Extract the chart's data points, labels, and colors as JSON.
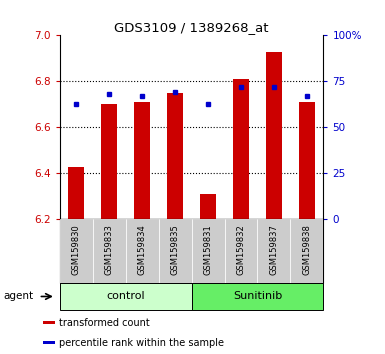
{
  "title": "GDS3109 / 1389268_at",
  "samples": [
    "GSM159830",
    "GSM159833",
    "GSM159834",
    "GSM159835",
    "GSM159831",
    "GSM159832",
    "GSM159837",
    "GSM159838"
  ],
  "bar_bottom": 6.2,
  "transformed_counts": [
    6.43,
    6.7,
    6.71,
    6.75,
    6.31,
    6.81,
    6.93,
    6.71
  ],
  "percentile_ranks": [
    63,
    68,
    67,
    69,
    63,
    72,
    72,
    67
  ],
  "bar_color": "#cc0000",
  "dot_color": "#0000cc",
  "ylim_left": [
    6.2,
    7.0
  ],
  "ylim_right": [
    0,
    100
  ],
  "yticks_left": [
    6.2,
    6.4,
    6.6,
    6.8,
    7.0
  ],
  "yticks_right": [
    0,
    25,
    50,
    75,
    100
  ],
  "ytick_labels_right": [
    "0",
    "25",
    "50",
    "75",
    "100%"
  ],
  "groups": [
    {
      "label": "control",
      "indices": [
        0,
        1,
        2,
        3
      ],
      "color": "#ccffcc"
    },
    {
      "label": "Sunitinib",
      "indices": [
        4,
        5,
        6,
        7
      ],
      "color": "#66ee66"
    }
  ],
  "group_label": "agent",
  "legend_items": [
    {
      "color": "#cc0000",
      "label": "transformed count"
    },
    {
      "color": "#0000cc",
      "label": "percentile rank within the sample"
    }
  ],
  "tick_color_left": "#cc0000",
  "tick_color_right": "#0000cc",
  "bg_color": "#ffffff",
  "plot_bg": "#ffffff",
  "xticklabel_bg": "#cccccc",
  "bar_width": 0.5
}
